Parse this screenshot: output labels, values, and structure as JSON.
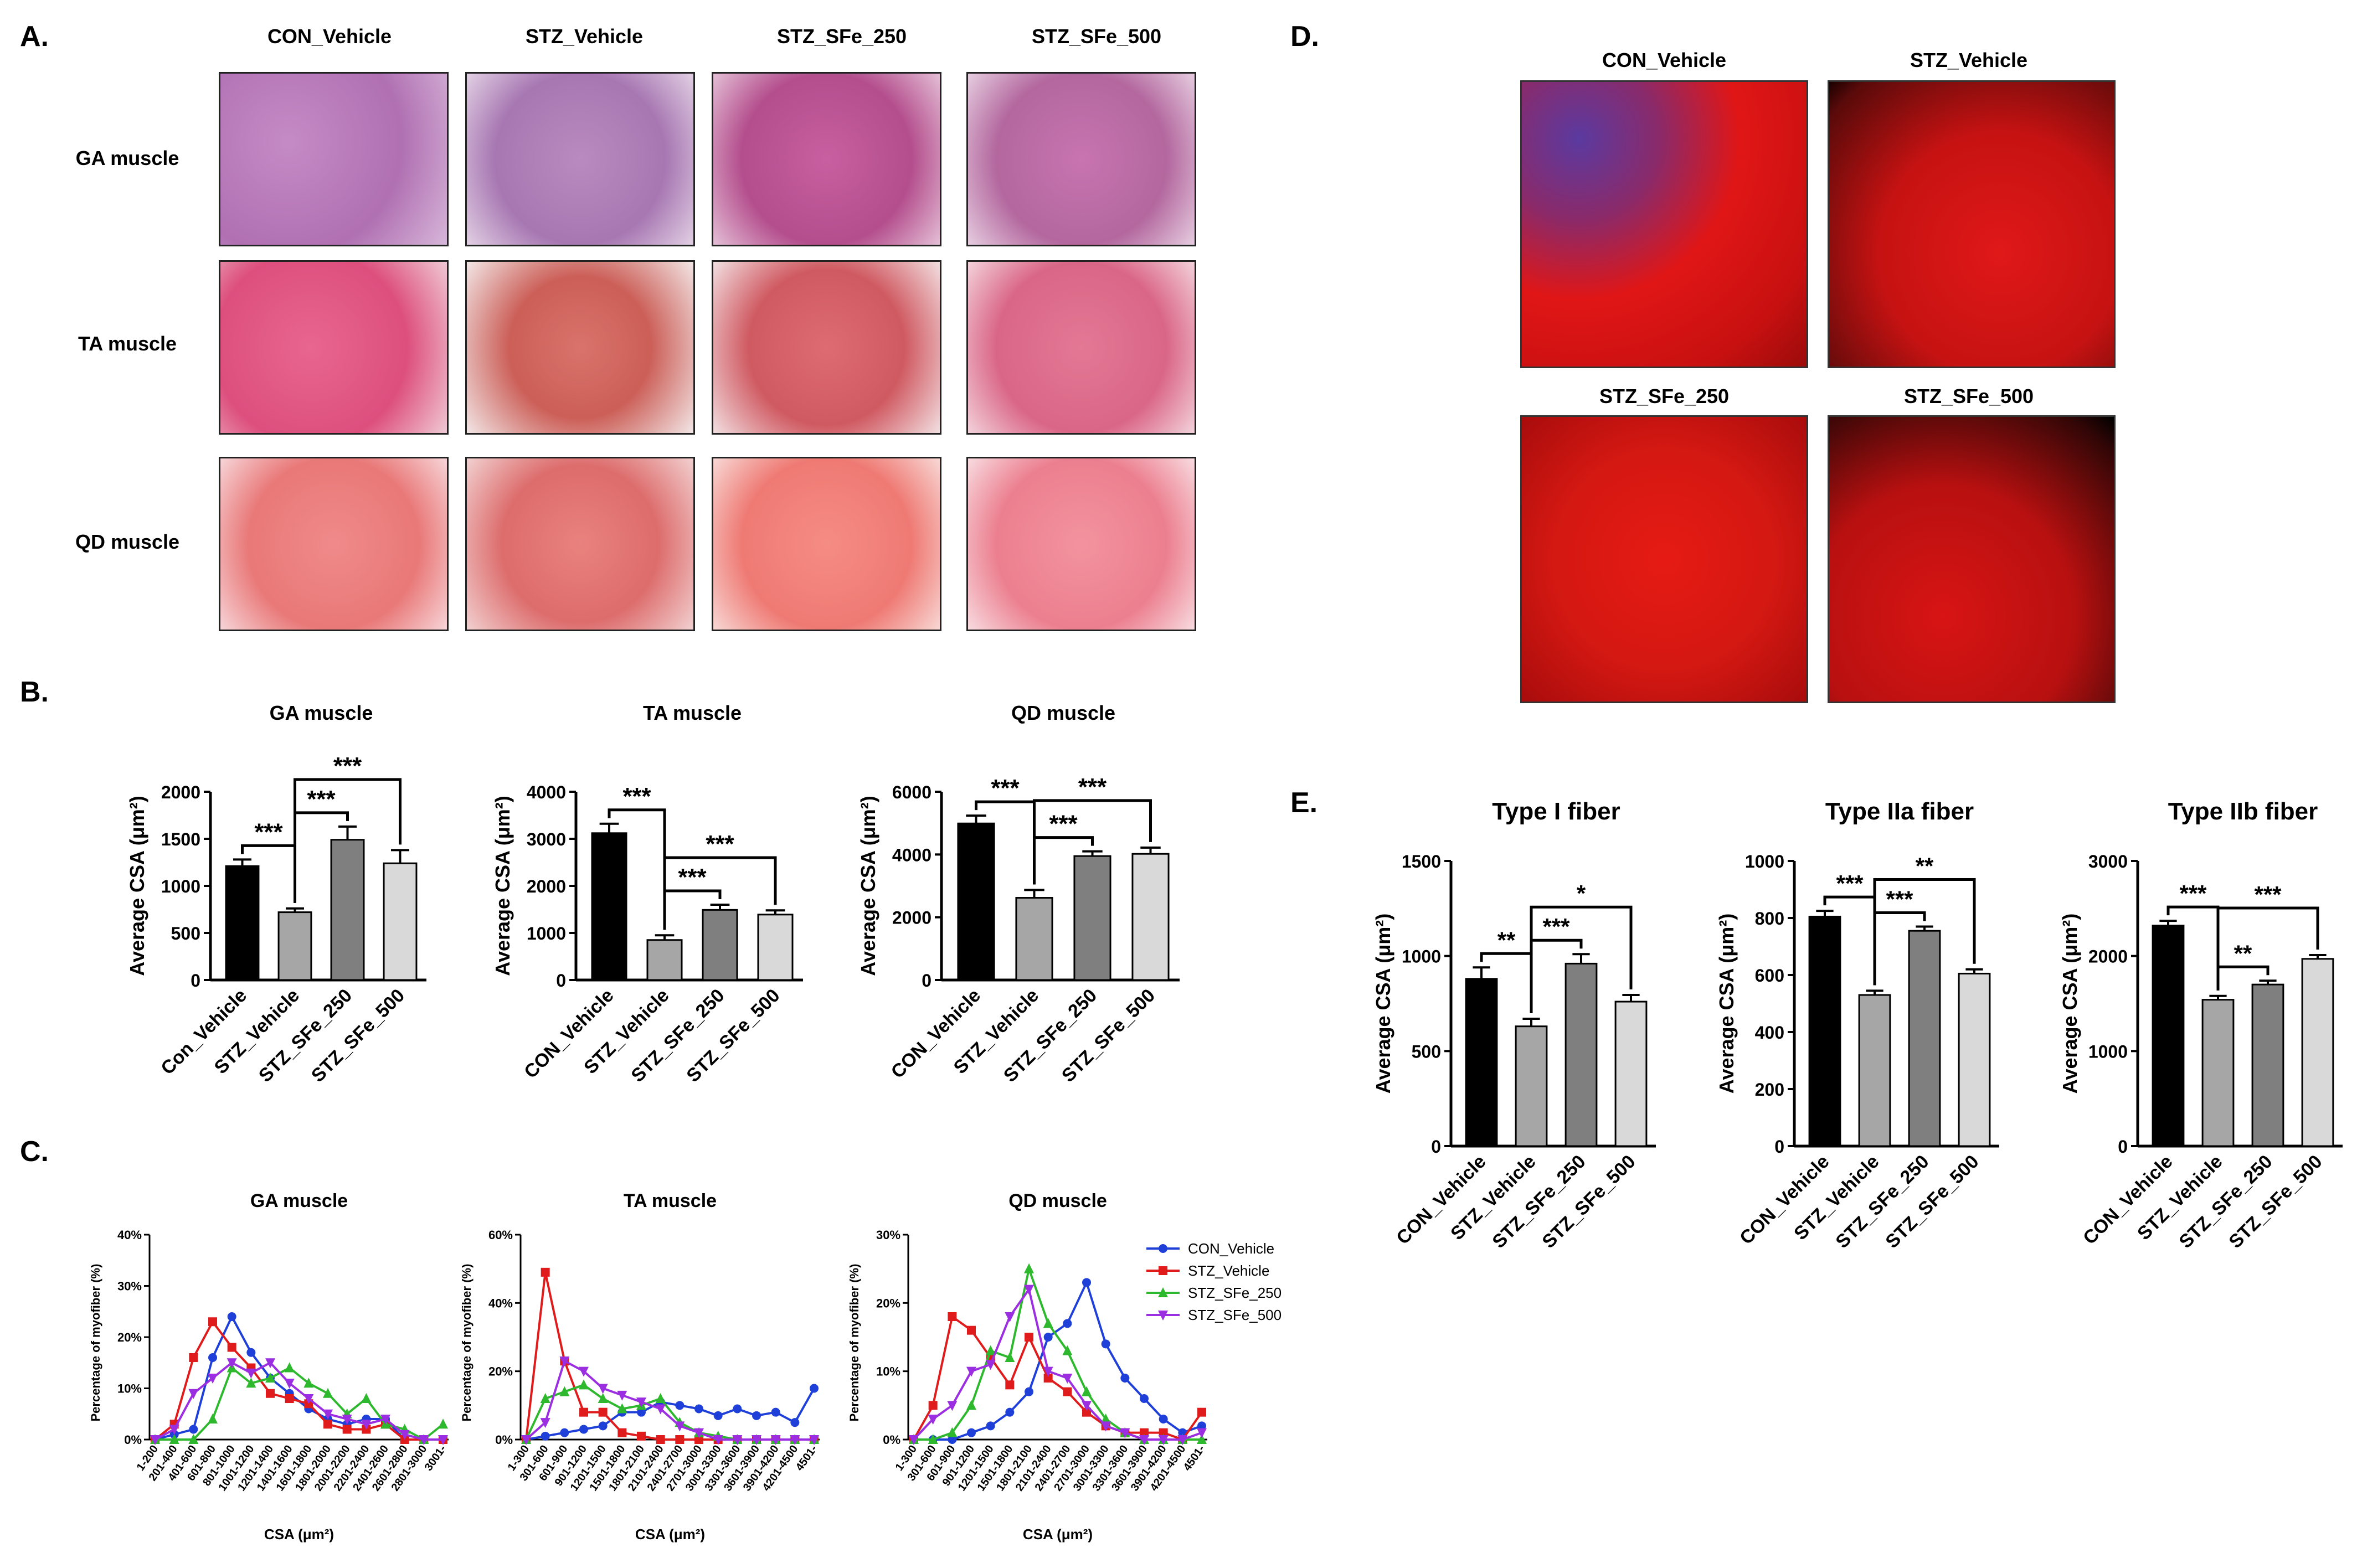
{
  "panels": {
    "A": "A.",
    "B": "B.",
    "C": "C.",
    "D": "D.",
    "E": "E."
  },
  "histology": {
    "columns": [
      "CON_Vehicle",
      "STZ_Vehicle",
      "STZ_SFe_250",
      "STZ_SFe_500"
    ],
    "rows": [
      "GA muscle",
      "TA muscle",
      "QD muscle"
    ]
  },
  "fluorescence": {
    "labels": [
      "CON_Vehicle",
      "STZ_Vehicle",
      "STZ_SFe_250",
      "STZ_SFe_500"
    ]
  },
  "chart_data": [
    {
      "id": "B1",
      "type": "bar",
      "title": "GA muscle",
      "ylabel": "Average CSA (μm²)",
      "categories": [
        "Con_Vehicle",
        "STZ_Vehicle",
        "STZ_SFe_250",
        "STZ_SFe_500"
      ],
      "values": [
        1210,
        720,
        1490,
        1240
      ],
      "errors": [
        70,
        40,
        140,
        140
      ],
      "ylim": [
        0,
        2000
      ],
      "yticks": [
        0,
        500,
        1000,
        1500,
        2000
      ],
      "colors": [
        "#000000",
        "#a6a6a6",
        "#7f7f7f",
        "#d9d9d9"
      ],
      "significance": [
        {
          "from": 0,
          "to": 1,
          "label": "***"
        },
        {
          "from": 1,
          "to": 2,
          "label": "***"
        },
        {
          "from": 1,
          "to": 3,
          "label": "***"
        }
      ]
    },
    {
      "id": "B2",
      "type": "bar",
      "title": "TA muscle",
      "ylabel": "Average CSA (μm²)",
      "categories": [
        "CON_Vehicle",
        "STZ_Vehicle",
        "STZ_SFe_250",
        "STZ_SFe_500"
      ],
      "values": [
        3120,
        850,
        1490,
        1390
      ],
      "errors": [
        200,
        100,
        110,
        90
      ],
      "ylim": [
        0,
        4000
      ],
      "yticks": [
        0,
        1000,
        2000,
        3000,
        4000
      ],
      "colors": [
        "#000000",
        "#a6a6a6",
        "#7f7f7f",
        "#d9d9d9"
      ],
      "significance": [
        {
          "from": 0,
          "to": 1,
          "label": "***"
        },
        {
          "from": 1,
          "to": 2,
          "label": "***"
        },
        {
          "from": 1,
          "to": 3,
          "label": "***"
        }
      ]
    },
    {
      "id": "B3",
      "type": "bar",
      "title": "QD muscle",
      "ylabel": "Average CSA (μm²)",
      "categories": [
        "CON_Vehicle",
        "STZ_Vehicle",
        "STZ_SFe_250",
        "STZ_SFe_500"
      ],
      "values": [
        4990,
        2620,
        3950,
        4020
      ],
      "errors": [
        250,
        250,
        150,
        200
      ],
      "ylim": [
        0,
        6000
      ],
      "yticks": [
        0,
        2000,
        4000,
        6000
      ],
      "colors": [
        "#000000",
        "#a6a6a6",
        "#7f7f7f",
        "#d9d9d9"
      ],
      "significance": [
        {
          "from": 0,
          "to": 1,
          "label": "***"
        },
        {
          "from": 1,
          "to": 2,
          "label": "***"
        },
        {
          "from": 1,
          "to": 3,
          "label": "***"
        }
      ]
    },
    {
      "id": "C1",
      "type": "line",
      "title": "GA muscle",
      "xlabel": "CSA (μm²)",
      "ylabel": "Percentage of myofiber (%)",
      "ylim": [
        0,
        40
      ],
      "yticks": [
        0,
        10,
        20,
        30,
        40
      ],
      "ytick_suffix": "%",
      "categories": [
        "1-200",
        "201-400",
        "401-600",
        "601-800",
        "801-1000",
        "1001-1200",
        "1201-1400",
        "1401-1600",
        "1601-1800",
        "1801-2000",
        "2001-2200",
        "2201-2400",
        "2401-2600",
        "2601-2800",
        "2801-3000",
        "3001-"
      ],
      "series": [
        {
          "name": "CON_Vehicle",
          "color": "#1f3fd9",
          "marker": "circle",
          "values": [
            0,
            1,
            2,
            16,
            24,
            17,
            12,
            9,
            6,
            4,
            3,
            4,
            4,
            0,
            0,
            0
          ]
        },
        {
          "name": "STZ_Vehicle",
          "color": "#e01b1b",
          "marker": "square",
          "values": [
            0,
            3,
            16,
            23,
            18,
            14,
            9,
            8,
            7,
            3,
            2,
            2,
            3,
            0,
            0,
            0
          ]
        },
        {
          "name": "STZ_SFe_250",
          "color": "#2eb82e",
          "marker": "triangle",
          "values": [
            0,
            0,
            0,
            4,
            14,
            11,
            12,
            14,
            11,
            9,
            5,
            8,
            3,
            2,
            0,
            3
          ]
        },
        {
          "name": "STZ_SFe_500",
          "color": "#9a2ee0",
          "marker": "triangle-down",
          "values": [
            0,
            2,
            9,
            12,
            15,
            13,
            15,
            11,
            8,
            5,
            4,
            3,
            4,
            1,
            0,
            0
          ]
        }
      ]
    },
    {
      "id": "C2",
      "type": "line",
      "title": "TA muscle",
      "xlabel": "CSA (μm²)",
      "ylabel": "Percentage of myofiber (%)",
      "ylim": [
        0,
        60
      ],
      "yticks": [
        0,
        20,
        40,
        60
      ],
      "ytick_suffix": "%",
      "categories": [
        "1-300",
        "301-600",
        "601-900",
        "901-1200",
        "1201-1500",
        "1501-1800",
        "1801-2100",
        "2101-2400",
        "2401-2700",
        "2701-3000",
        "3001-3300",
        "3301-3600",
        "3601-3900",
        "3901-4200",
        "4201-4500",
        "4501-"
      ],
      "series": [
        {
          "name": "CON_Vehicle",
          "color": "#1f3fd9",
          "marker": "circle",
          "values": [
            0,
            1,
            2,
            3,
            4,
            8,
            8,
            11,
            10,
            9,
            7,
            9,
            7,
            8,
            5,
            15
          ]
        },
        {
          "name": "STZ_Vehicle",
          "color": "#e01b1b",
          "marker": "square",
          "values": [
            0,
            49,
            23,
            8,
            8,
            2,
            1,
            0,
            0,
            0,
            0,
            0,
            0,
            0,
            0,
            0
          ]
        },
        {
          "name": "STZ_SFe_250",
          "color": "#2eb82e",
          "marker": "triangle",
          "values": [
            0,
            12,
            14,
            16,
            12,
            9,
            10,
            12,
            5,
            2,
            1,
            0,
            0,
            0,
            0,
            0
          ]
        },
        {
          "name": "STZ_SFe_500",
          "color": "#9a2ee0",
          "marker": "triangle-down",
          "values": [
            0,
            5,
            23,
            20,
            15,
            13,
            11,
            9,
            4,
            2,
            0,
            0,
            0,
            0,
            0,
            0
          ]
        }
      ]
    },
    {
      "id": "C3",
      "type": "line",
      "title": "QD muscle",
      "xlabel": "CSA (μm²)",
      "ylabel": "Percentage of myofiber (%)",
      "ylim": [
        0,
        30
      ],
      "yticks": [
        0,
        10,
        20,
        30
      ],
      "ytick_suffix": "%",
      "categories": [
        "1-300",
        "301-600",
        "601-900",
        "901-1200",
        "1201-1500",
        "1501-1800",
        "1801-2100",
        "2101-2400",
        "2401-2700",
        "2701-3000",
        "3001-3300",
        "3301-3600",
        "3601-3900",
        "3901-4200",
        "4201-4500",
        "4501-"
      ],
      "series": [
        {
          "name": "CON_Vehicle",
          "color": "#1f3fd9",
          "marker": "circle",
          "values": [
            0,
            0,
            0,
            1,
            2,
            4,
            7,
            15,
            17,
            23,
            14,
            9,
            6,
            3,
            1,
            2
          ]
        },
        {
          "name": "STZ_Vehicle",
          "color": "#e01b1b",
          "marker": "square",
          "values": [
            0,
            5,
            18,
            16,
            12,
            8,
            15,
            9,
            7,
            4,
            2,
            1,
            1,
            1,
            0,
            4
          ]
        },
        {
          "name": "STZ_SFe_250",
          "color": "#2eb82e",
          "marker": "triangle",
          "values": [
            0,
            0,
            1,
            5,
            13,
            12,
            25,
            17,
            13,
            7,
            3,
            1,
            0,
            0,
            0,
            0
          ]
        },
        {
          "name": "STZ_SFe_500",
          "color": "#9a2ee0",
          "marker": "triangle-down",
          "values": [
            0,
            3,
            5,
            10,
            11,
            18,
            22,
            10,
            9,
            5,
            2,
            1,
            0,
            0,
            0,
            1
          ]
        }
      ]
    },
    {
      "id": "E1",
      "type": "bar",
      "title": "Type I fiber",
      "ylabel": "Average CSA (μm²)",
      "categories": [
        "CON_Vehicle",
        "STZ_Vehicle",
        "STZ_SFe_250",
        "STZ_SFe_500"
      ],
      "values": [
        880,
        630,
        960,
        760
      ],
      "errors": [
        60,
        40,
        50,
        35
      ],
      "ylim": [
        0,
        1500
      ],
      "yticks": [
        0,
        500,
        1000,
        1500
      ],
      "colors": [
        "#000000",
        "#a6a6a6",
        "#7f7f7f",
        "#d9d9d9"
      ],
      "significance": [
        {
          "from": 0,
          "to": 1,
          "label": "**"
        },
        {
          "from": 1,
          "to": 2,
          "label": "***"
        },
        {
          "from": 1,
          "to": 3,
          "label": "*"
        }
      ]
    },
    {
      "id": "E2",
      "type": "bar",
      "title": "Type IIa fiber",
      "ylabel": "Average CSA (μm²)",
      "categories": [
        "CON_Vehicle",
        "STZ_Vehicle",
        "STZ_SFe_250",
        "STZ_SFe_500"
      ],
      "values": [
        805,
        530,
        755,
        605
      ],
      "errors": [
        20,
        15,
        15,
        15
      ],
      "ylim": [
        0,
        1000
      ],
      "yticks": [
        0,
        200,
        400,
        600,
        800,
        1000
      ],
      "colors": [
        "#000000",
        "#a6a6a6",
        "#7f7f7f",
        "#d9d9d9"
      ],
      "significance": [
        {
          "from": 0,
          "to": 1,
          "label": "***"
        },
        {
          "from": 1,
          "to": 2,
          "label": "***"
        },
        {
          "from": 1,
          "to": 3,
          "label": "**"
        }
      ]
    },
    {
      "id": "E3",
      "type": "bar",
      "title": "Type IIb fiber",
      "ylabel": "Average CSA (μm²)",
      "categories": [
        "CON_Vehicle",
        "STZ_Vehicle",
        "STZ_SFe_250",
        "STZ_SFe_500"
      ],
      "values": [
        2320,
        1540,
        1700,
        1970
      ],
      "errors": [
        50,
        40,
        40,
        40
      ],
      "ylim": [
        0,
        3000
      ],
      "yticks": [
        0,
        1000,
        2000,
        3000
      ],
      "colors": [
        "#000000",
        "#a6a6a6",
        "#7f7f7f",
        "#d9d9d9"
      ],
      "significance": [
        {
          "from": 0,
          "to": 1,
          "label": "***"
        },
        {
          "from": 1,
          "to": 2,
          "label": "**"
        },
        {
          "from": 1,
          "to": 3,
          "label": "***"
        }
      ]
    }
  ]
}
